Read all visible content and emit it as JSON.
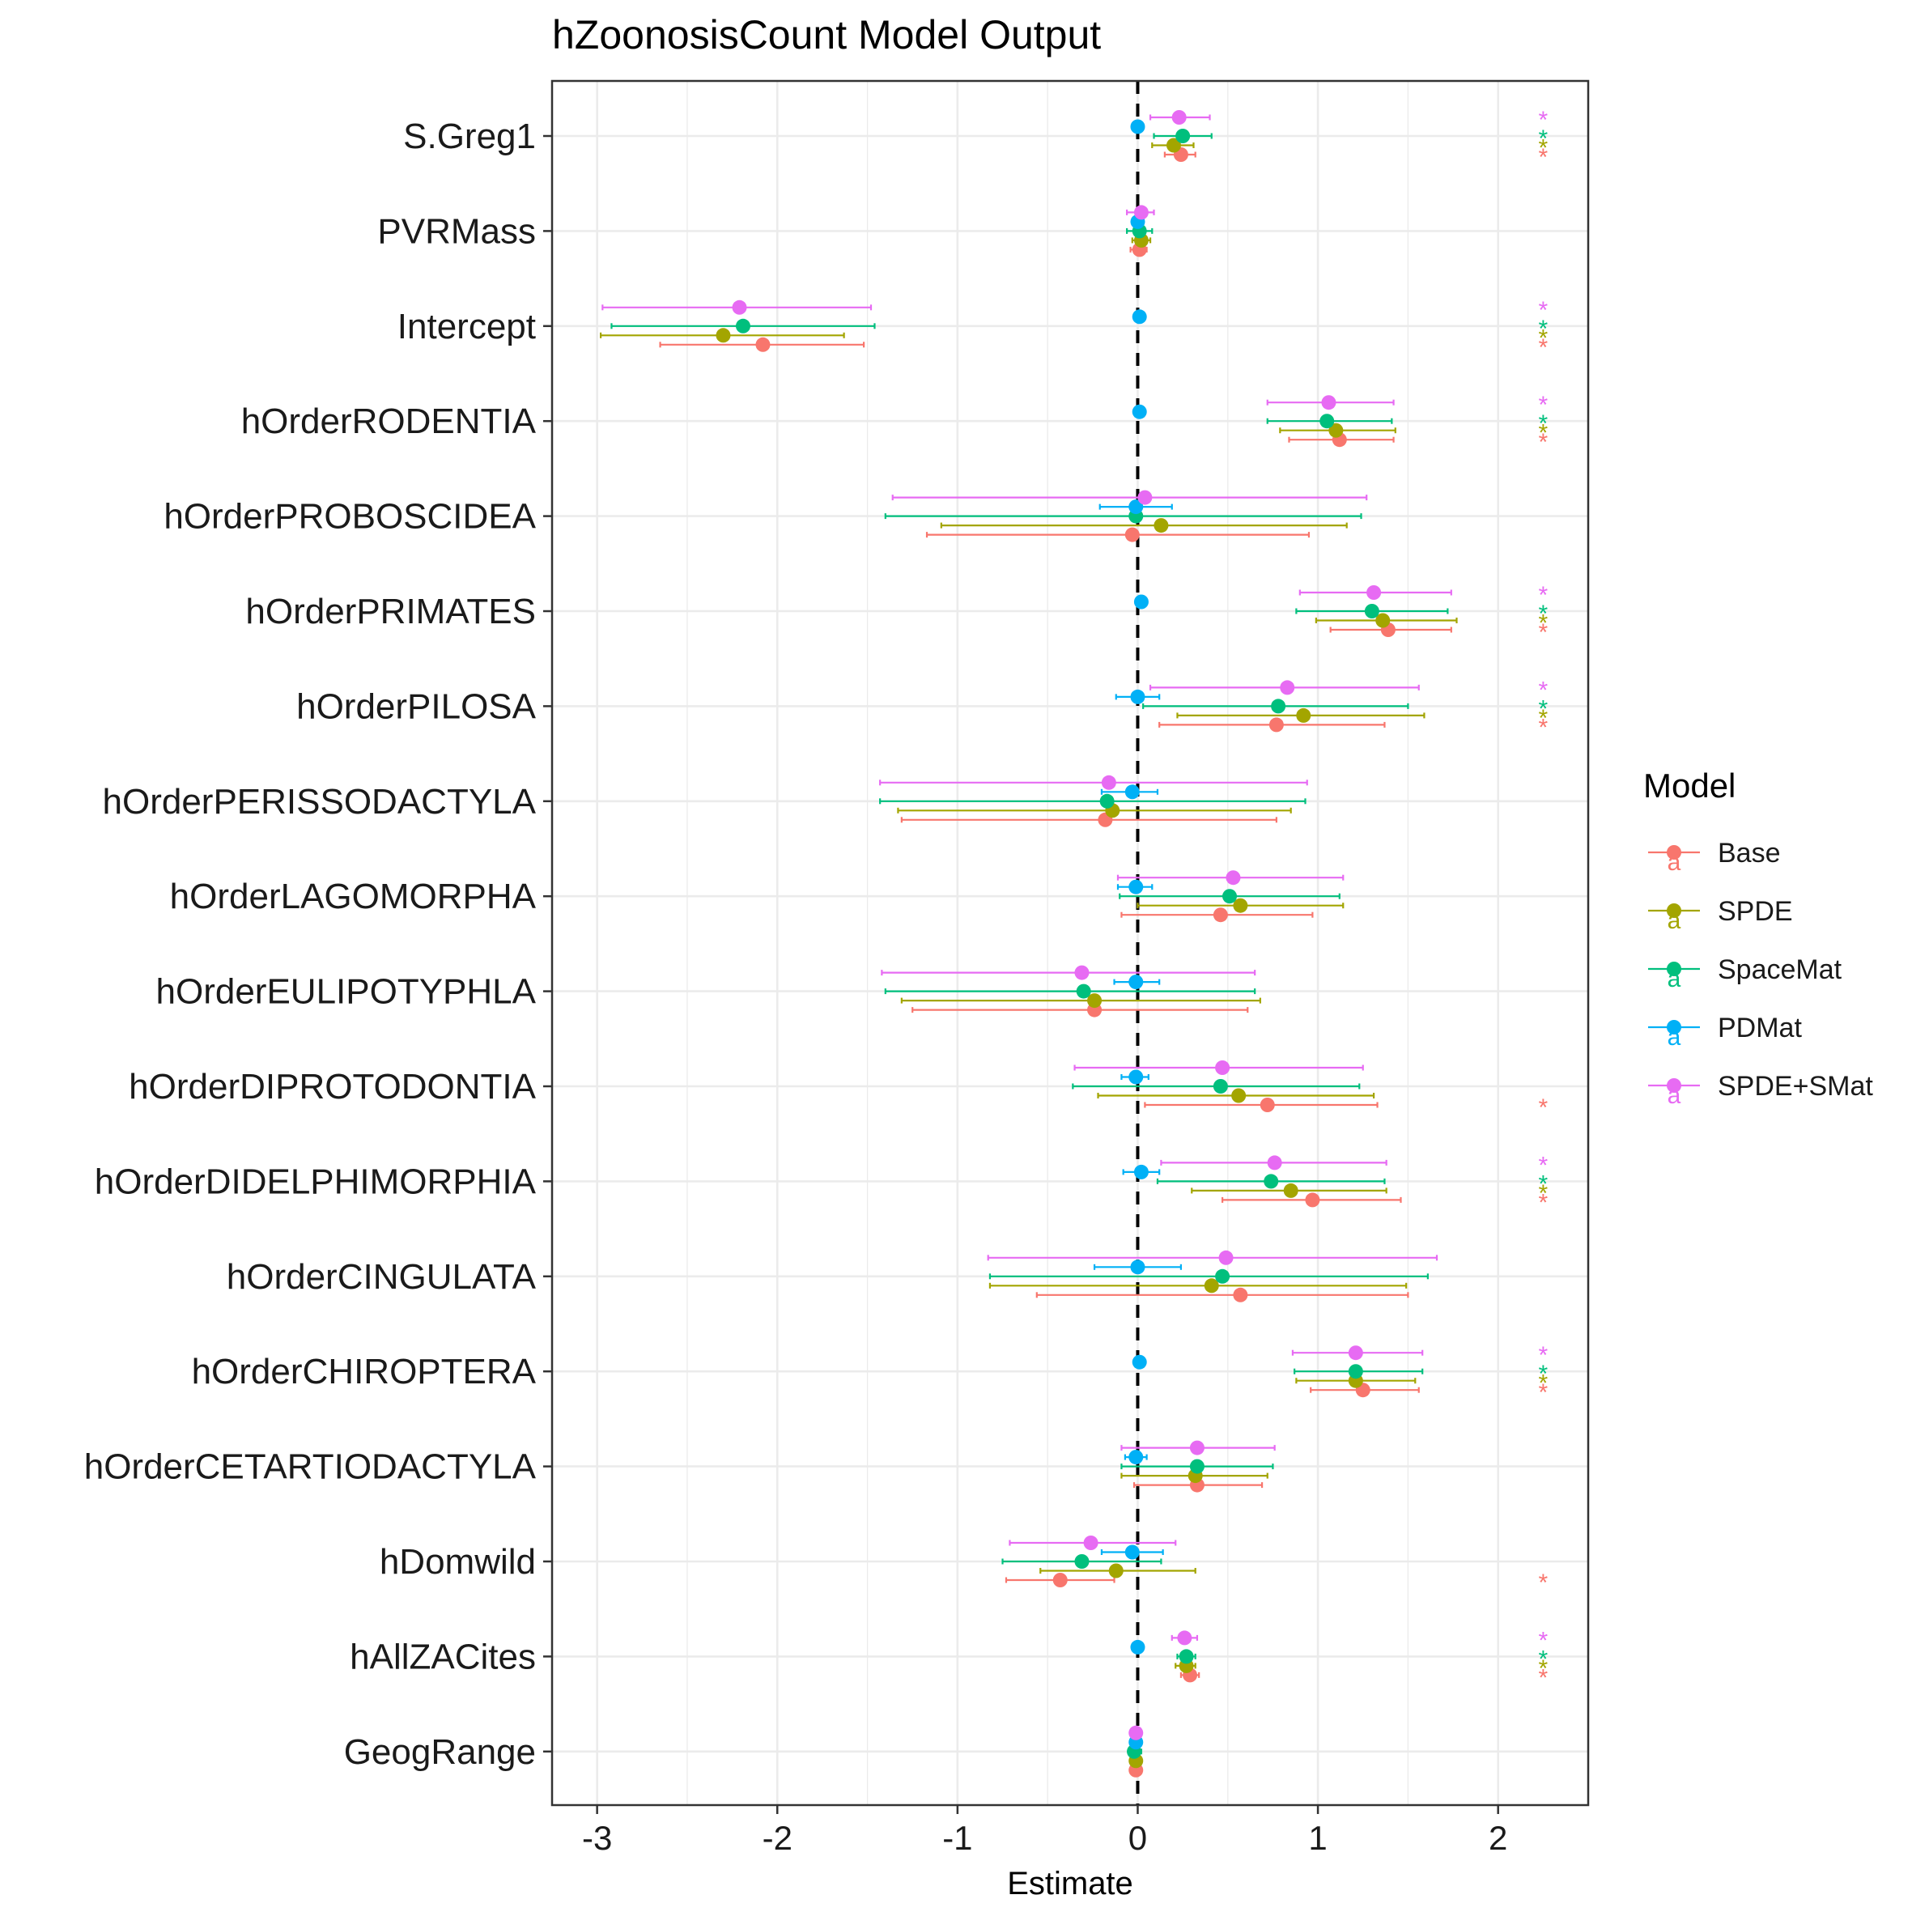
{
  "chart_data": {
    "type": "scatter",
    "title": "hZoonosisCount Model Output",
    "xlabel": "Estimate",
    "ylabel": "",
    "xlim": [
      -3.25,
      2.5
    ],
    "xticks": [
      -3,
      -2,
      -1,
      0,
      1,
      2
    ],
    "xtick_labels": [
      "-3",
      "-2",
      "-1",
      "0",
      "1",
      "2"
    ],
    "reference_line": 0,
    "grid": true,
    "legend_position": "right",
    "legend_title": "Model",
    "legend_key_glyph": "a",
    "significance_marker": "*",
    "categories": [
      "S.Greg1",
      "PVRMass",
      "Intercept",
      "hOrderRODENTIA",
      "hOrderPROBOSCIDEA",
      "hOrderPRIMATES",
      "hOrderPILOSA",
      "hOrderPERISSODACTYLA",
      "hOrderLAGOMORPHA",
      "hOrderEULIPOTYPHLA",
      "hOrderDIPROTODONTIA",
      "hOrderDIDELPHIMORPHIA",
      "hOrderCINGULATA",
      "hOrderCHIROPTERA",
      "hOrderCETARTIODACTYLA",
      "hDomwild",
      "hAllZACites",
      "GeogRange"
    ],
    "series": [
      {
        "name": "Base",
        "color": "#F8766D",
        "estimate": [
          0.24,
          0.01,
          -2.08,
          1.12,
          -0.03,
          1.39,
          0.77,
          -0.18,
          0.46,
          -0.24,
          0.72,
          0.97,
          0.57,
          1.25,
          0.33,
          -0.43,
          0.29,
          -0.01
        ],
        "lower": [
          0.15,
          -0.04,
          -2.65,
          0.84,
          -1.17,
          1.07,
          0.12,
          -1.31,
          -0.09,
          -1.25,
          0.04,
          0.47,
          -0.56,
          0.96,
          -0.02,
          -0.73,
          0.24,
          -0.04
        ],
        "upper": [
          0.32,
          0.05,
          -1.52,
          1.42,
          0.95,
          1.74,
          1.37,
          0.77,
          0.97,
          0.61,
          1.33,
          1.46,
          1.5,
          1.56,
          0.69,
          -0.13,
          0.34,
          0.02
        ],
        "significant": [
          true,
          false,
          true,
          true,
          false,
          true,
          true,
          false,
          false,
          false,
          true,
          true,
          false,
          true,
          false,
          true,
          true,
          false
        ]
      },
      {
        "name": "SPDE",
        "color": "#A3A500",
        "estimate": [
          0.2,
          0.02,
          -2.3,
          1.1,
          0.13,
          1.36,
          0.92,
          -0.14,
          0.57,
          -0.24,
          0.56,
          0.85,
          0.41,
          1.21,
          0.32,
          -0.12,
          0.27,
          -0.01
        ],
        "lower": [
          0.08,
          -0.03,
          -2.98,
          0.79,
          -1.09,
          0.99,
          0.22,
          -1.33,
          0.0,
          -1.31,
          -0.22,
          0.3,
          -0.82,
          0.88,
          -0.09,
          -0.54,
          0.21,
          -0.04
        ],
        "upper": [
          0.31,
          0.07,
          -1.63,
          1.43,
          1.16,
          1.77,
          1.59,
          0.85,
          1.14,
          0.68,
          1.31,
          1.38,
          1.49,
          1.54,
          0.72,
          0.32,
          0.32,
          0.02
        ],
        "significant": [
          true,
          false,
          true,
          true,
          false,
          true,
          true,
          false,
          false,
          false,
          false,
          true,
          false,
          true,
          false,
          false,
          true,
          false
        ]
      },
      {
        "name": "SpaceMat",
        "color": "#00BF7D",
        "estimate": [
          0.25,
          0.01,
          -2.19,
          1.05,
          -0.01,
          1.3,
          0.78,
          -0.17,
          0.51,
          -0.3,
          0.46,
          0.74,
          0.47,
          1.21,
          0.33,
          -0.31,
          0.27,
          -0.02
        ],
        "lower": [
          0.09,
          -0.06,
          -2.92,
          0.72,
          -1.4,
          0.88,
          0.03,
          -1.43,
          -0.1,
          -1.4,
          -0.36,
          0.11,
          -0.82,
          0.87,
          -0.09,
          -0.75,
          0.22,
          -0.05
        ],
        "upper": [
          0.41,
          0.08,
          -1.46,
          1.41,
          1.24,
          1.72,
          1.5,
          0.93,
          1.12,
          0.65,
          1.23,
          1.37,
          1.61,
          1.58,
          0.75,
          0.13,
          0.32,
          0.02
        ],
        "significant": [
          true,
          false,
          true,
          true,
          false,
          true,
          true,
          false,
          false,
          false,
          false,
          true,
          false,
          true,
          false,
          false,
          true,
          false
        ]
      },
      {
        "name": "PDMat",
        "color": "#00B0F6",
        "estimate": [
          0.0,
          0.0,
          0.01,
          0.01,
          -0.01,
          0.02,
          0.0,
          -0.03,
          -0.01,
          -0.01,
          -0.01,
          0.02,
          0.0,
          0.01,
          -0.01,
          -0.03,
          0.0,
          -0.01
        ],
        "lower": [
          -0.01,
          -0.01,
          0.0,
          0.0,
          -0.21,
          0.01,
          -0.12,
          -0.2,
          -0.11,
          -0.13,
          -0.09,
          -0.08,
          -0.24,
          0.0,
          -0.07,
          -0.2,
          -0.01,
          -0.04
        ],
        "upper": [
          0.01,
          0.01,
          0.02,
          0.02,
          0.19,
          0.03,
          0.12,
          0.11,
          0.08,
          0.12,
          0.06,
          0.12,
          0.24,
          0.02,
          0.05,
          0.14,
          0.01,
          0.02
        ],
        "significant": [
          false,
          false,
          false,
          false,
          false,
          false,
          false,
          false,
          false,
          false,
          false,
          false,
          false,
          false,
          false,
          false,
          false,
          false
        ]
      },
      {
        "name": "SPDE+SMat",
        "color": "#E76BF3",
        "estimate": [
          0.23,
          0.02,
          -2.21,
          1.06,
          0.04,
          1.31,
          0.83,
          -0.16,
          0.53,
          -0.31,
          0.47,
          0.76,
          0.49,
          1.21,
          0.33,
          -0.26,
          0.26,
          -0.01
        ],
        "lower": [
          0.07,
          -0.06,
          -2.97,
          0.72,
          -1.36,
          0.9,
          0.07,
          -1.43,
          -0.11,
          -1.42,
          -0.35,
          0.13,
          -0.83,
          0.86,
          -0.09,
          -0.71,
          0.19,
          -0.04
        ],
        "upper": [
          0.4,
          0.09,
          -1.48,
          1.42,
          1.27,
          1.74,
          1.56,
          0.94,
          1.14,
          0.65,
          1.25,
          1.38,
          1.66,
          1.58,
          0.76,
          0.21,
          0.33,
          0.02
        ],
        "significant": [
          true,
          false,
          true,
          true,
          false,
          true,
          true,
          false,
          false,
          false,
          false,
          true,
          false,
          true,
          false,
          false,
          true,
          false
        ]
      }
    ]
  }
}
